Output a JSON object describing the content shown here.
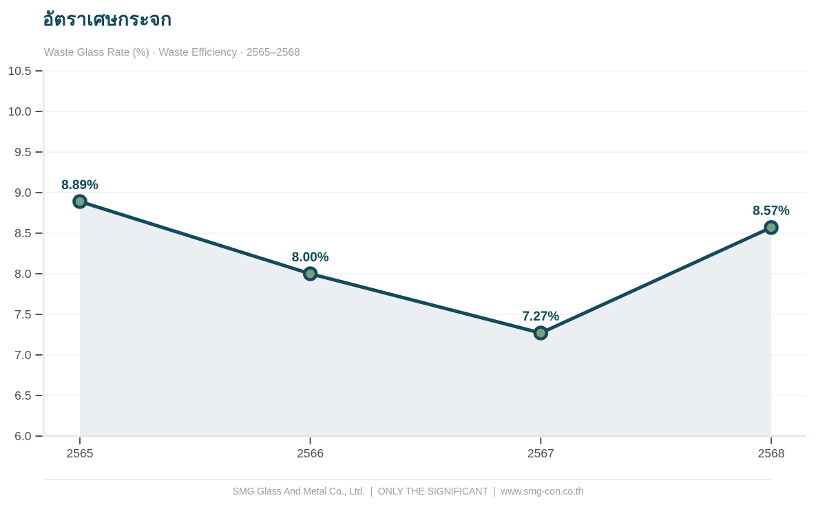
{
  "header": {
    "title": "อัตราเศษกระจก",
    "subtitle": "Waste Glass Rate (%) · Waste Efficiency · 2565–2568"
  },
  "chart_data": {
    "type": "line",
    "categories": [
      "2565",
      "2566",
      "2567",
      "2568"
    ],
    "values": [
      8.89,
      8.0,
      7.27,
      8.57
    ],
    "point_labels": [
      "8.89%",
      "8.00%",
      "7.27%",
      "8.57%"
    ],
    "title": "อัตราเศษกระจก",
    "subtitle": "Waste Glass Rate (%) · Waste Efficiency · 2565–2568",
    "xlabel": "",
    "ylabel": "",
    "ylim": [
      6.0,
      10.5
    ],
    "ytick_step": 0.5,
    "ytick_labels": [
      "6.0",
      "6.5",
      "7.0",
      "7.5",
      "8.0",
      "8.5",
      "9.0",
      "9.5",
      "10.0",
      "10.5"
    ],
    "grid": true,
    "area_fill": true,
    "legend_position": "none"
  },
  "theme": {
    "title_color": "#11495c",
    "subtitle_color": "#9aa0a6",
    "footer_color": "#9aa0a6",
    "separator_color": "#dfeae5",
    "background": "#ffffff",
    "line_color": "#16495a",
    "marker_fill": "#74a083",
    "marker_ring": "#16495a",
    "area_fill_color": "#e9eef1",
    "point_label_color": "#0e4a5e",
    "axis_line_color": "#d9e6e0",
    "tick_color": "#555555",
    "tick_label_color": "#4d4d4d",
    "grid_color": "#eceff1"
  },
  "footer": {
    "text": "SMG Glass And Metal Co., Ltd.  |  ONLY THE SIGNIFICANT  |  www.smg-con.co.th"
  }
}
